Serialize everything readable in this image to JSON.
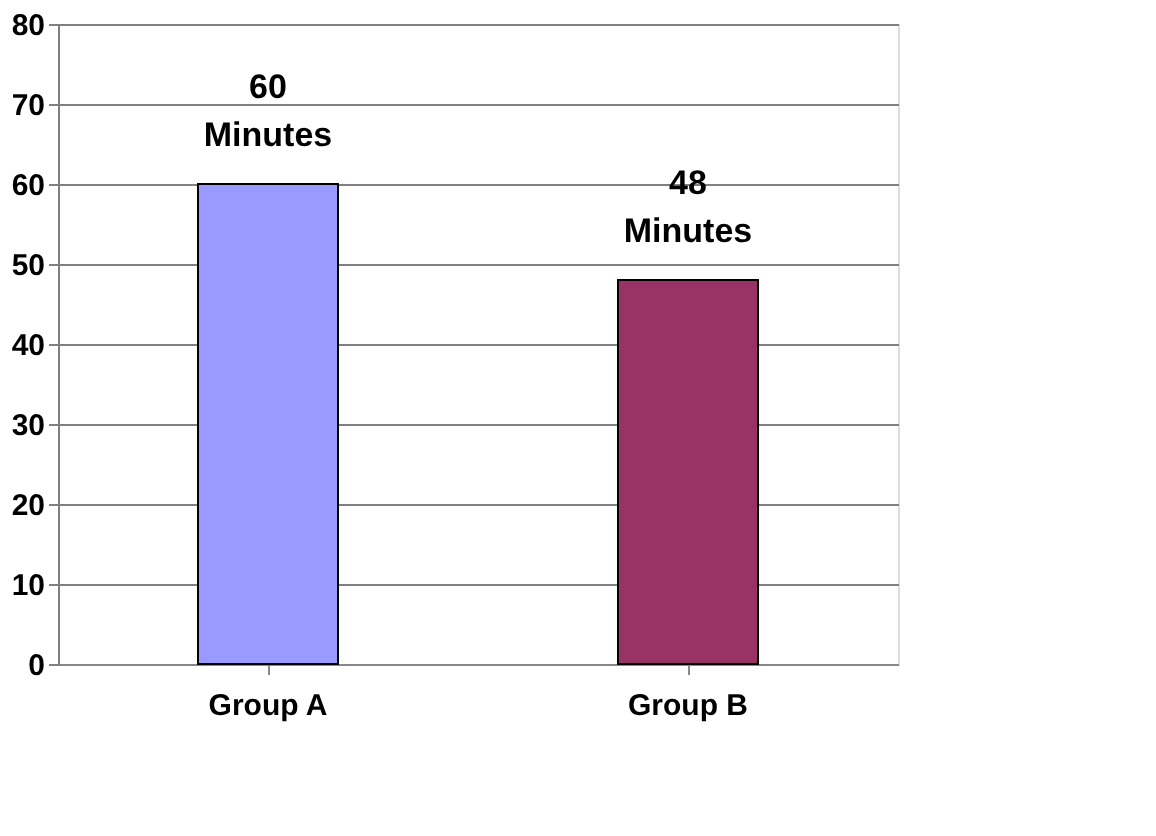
{
  "chart_data": {
    "type": "bar",
    "categories": [
      "Group A",
      "Group B"
    ],
    "values": [
      60,
      48
    ],
    "colors": [
      "#9999ff",
      "#993366"
    ],
    "value_labels": [
      "60 Minutes",
      "48 Minutes"
    ],
    "ylim": [
      0,
      80
    ],
    "yticks": [
      0,
      10,
      20,
      30,
      40,
      50,
      60,
      70,
      80
    ],
    "grid": "y"
  }
}
